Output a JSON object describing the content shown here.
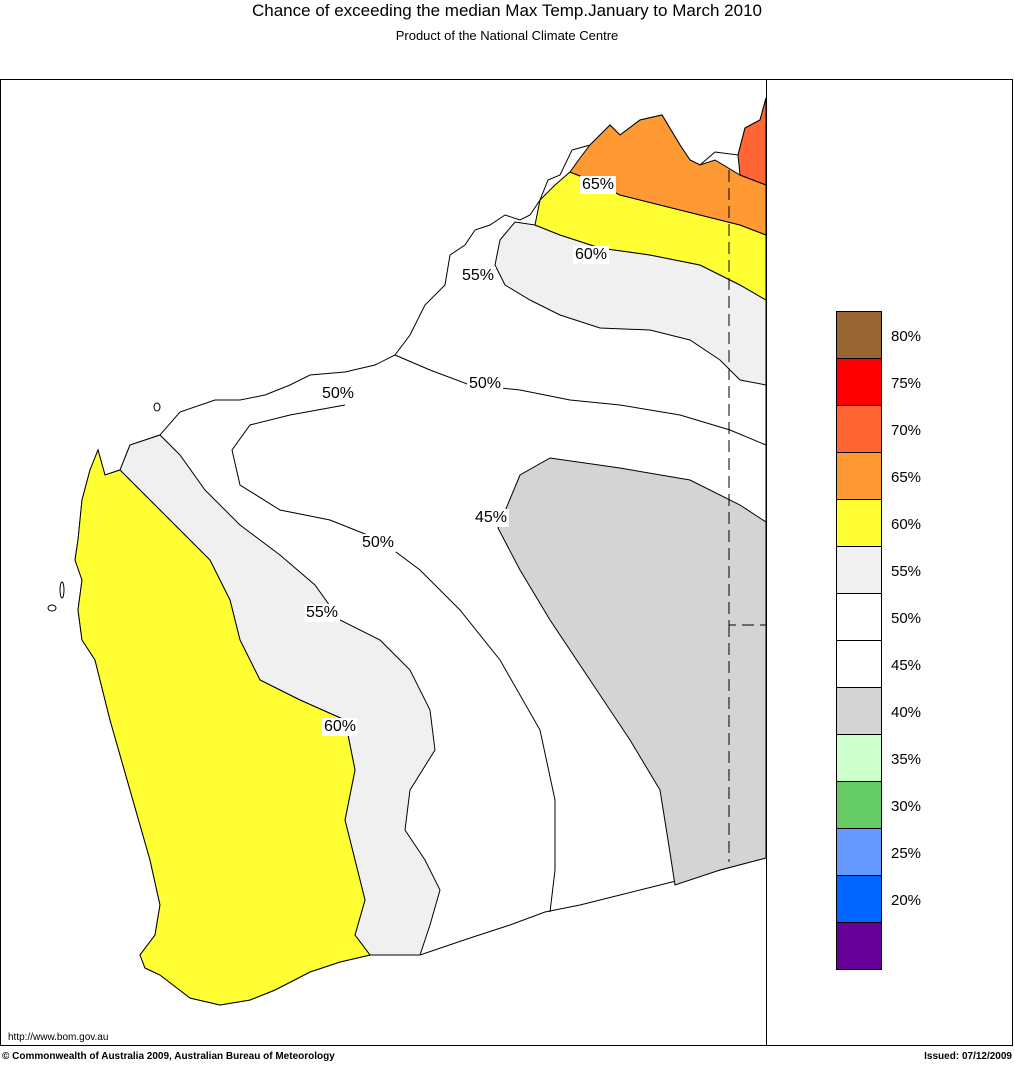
{
  "header": {
    "title": "Chance of exceeding the median Max Temp.January to March 2010",
    "subtitle": "Product of the National Climate Centre"
  },
  "map": {
    "region": "Western Australia",
    "contour_labels": [
      "65%",
      "60%",
      "55%",
      "50%",
      "50%",
      "45%",
      "50%",
      "55%",
      "60%"
    ]
  },
  "legend": {
    "items": [
      {
        "label": "80%",
        "color": "#996633"
      },
      {
        "label": "75%",
        "color": "#ff0000"
      },
      {
        "label": "70%",
        "color": "#ff6633"
      },
      {
        "label": "65%",
        "color": "#ff9933"
      },
      {
        "label": "60%",
        "color": "#ffff33"
      },
      {
        "label": "55%",
        "color": "#f0f0f0"
      },
      {
        "label": "50%",
        "color": "#ffffff"
      },
      {
        "label": "45%",
        "color": "#ffffff"
      },
      {
        "label": "40%",
        "color": "#d4d4d4"
      },
      {
        "label": "35%",
        "color": "#ccffcc"
      },
      {
        "label": "30%",
        "color": "#66cc66"
      },
      {
        "label": "25%",
        "color": "#6699ff"
      },
      {
        "label": "20%",
        "color": "#0066ff"
      },
      {
        "label": "",
        "color": "#660099"
      }
    ]
  },
  "footer": {
    "url": "http://www.bom.gov.au",
    "copyright": "© Commonwealth of Australia 2009, Australian Bureau of Meteorology",
    "issued": "Issued: 07/12/2009"
  }
}
